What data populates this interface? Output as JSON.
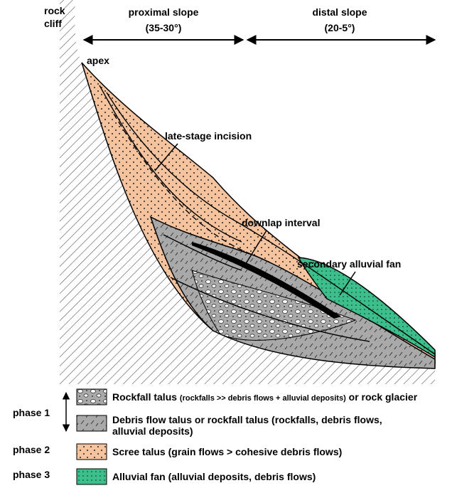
{
  "header": {
    "cliff": [
      "rock",
      "cliff"
    ],
    "proximal": {
      "title": "proximal slope",
      "angle": "(35-30°)"
    },
    "distal": {
      "title": "distal slope",
      "angle": "(20-5°)"
    }
  },
  "annotations": {
    "apex": "apex",
    "incision": "late-stage incision",
    "downlap": "downlap interval",
    "secondary_fan": "secondary alluvial fan"
  },
  "legend": {
    "phases": [
      "phase 1",
      "phase 2",
      "phase 3"
    ],
    "items": [
      {
        "title": "Rockfall talus",
        "detail": "(rockfalls >> debris flows + alluvial deposits)",
        "suffix": "or rock glacier"
      },
      {
        "lines": [
          "Debris flow talus or rockfall talus (rockfalls, debris flows,",
          "alluvial deposits)"
        ]
      },
      {
        "lines": [
          "Scree talus (grain flows > cohesive debris flows)"
        ]
      },
      {
        "lines": [
          "Alluvial fan (alluvial deposits, debris flows)"
        ]
      }
    ]
  }
}
